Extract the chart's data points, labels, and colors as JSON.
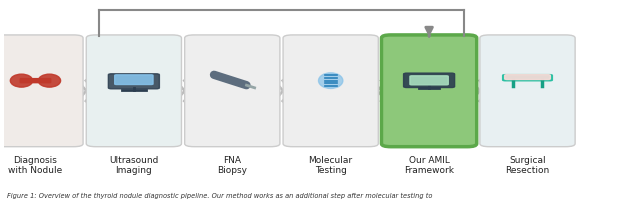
{
  "title": "Figure 1: Overview of the thyroid nodule diagnostic pipeline. Our method works as an additional step after molecular testing to",
  "background_color": "#ffffff",
  "steps": [
    {
      "label": "Diagnosis\nwith Nodule",
      "color": "#f0ebe8",
      "highlight": false
    },
    {
      "label": "Ultrasound\nImaging",
      "color": "#e8f0f0",
      "highlight": false
    },
    {
      "label": "FNA\nBiopsy",
      "color": "#eeeeee",
      "highlight": false
    },
    {
      "label": "Molecular\nTesting",
      "color": "#eeeeee",
      "highlight": false
    },
    {
      "label": "Our AMIL\nFramework",
      "color": "#8dc87a",
      "highlight": true
    },
    {
      "label": "Surgical\nResection",
      "color": "#e8f0f2",
      "highlight": false
    }
  ],
  "arrow_color": "#bbbbbb",
  "highlight_border_color": "#5ca84a",
  "top_bracket_color": "#888888",
  "figsize": [
    6.4,
    2.06
  ],
  "dpi": 100
}
